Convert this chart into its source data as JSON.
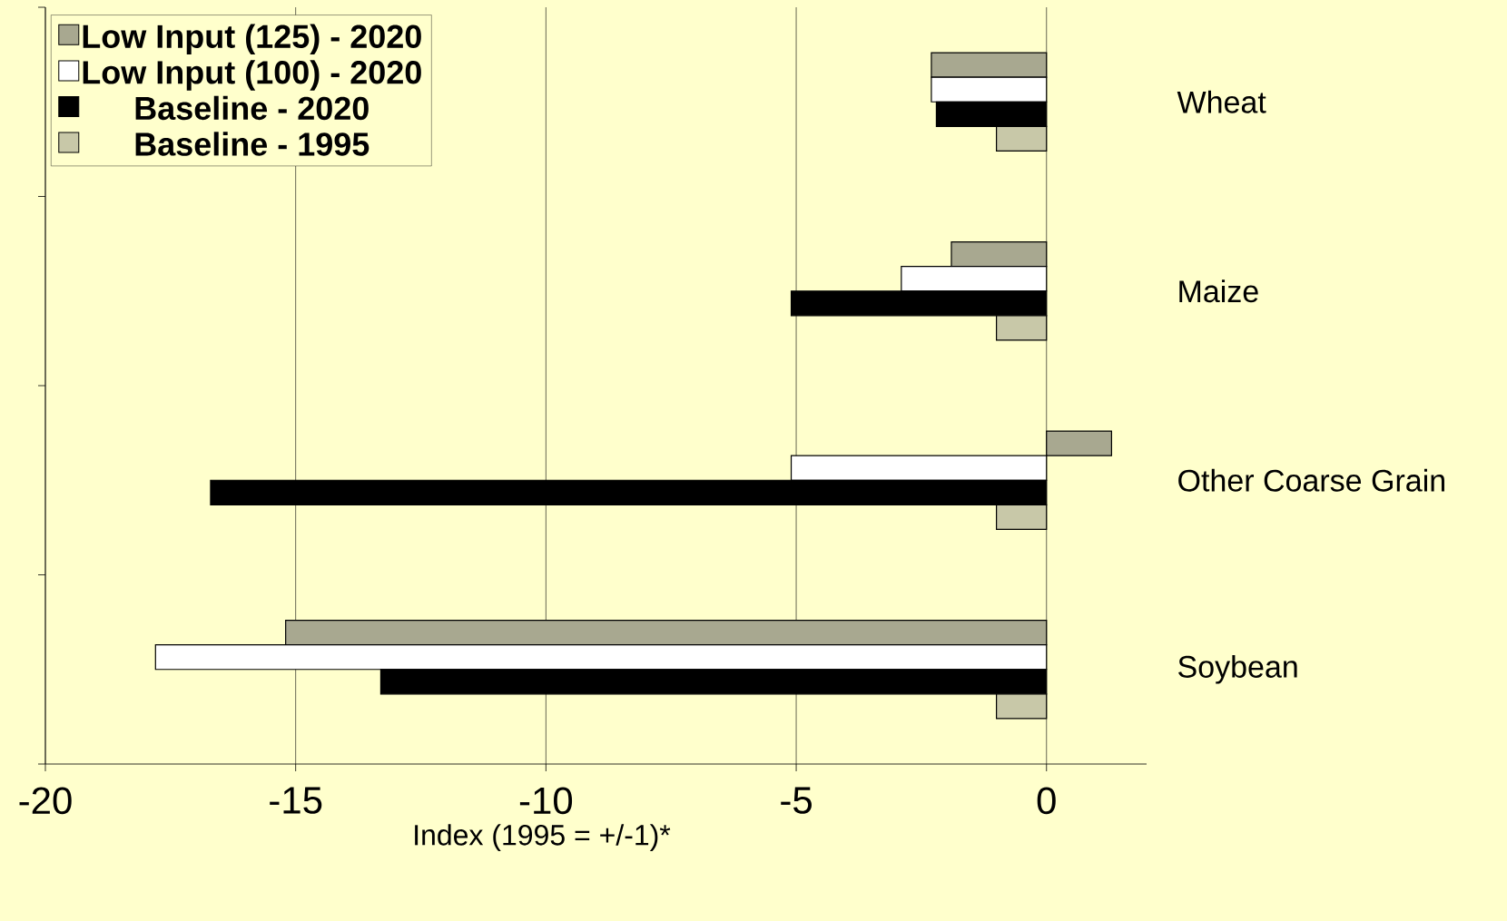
{
  "chart_data": {
    "type": "bar",
    "orientation": "horizontal",
    "categories": [
      "Wheat",
      "Maize",
      "Other Coarse Grain",
      "Soybean"
    ],
    "series": [
      {
        "name": "Low Input (125) - 2020",
        "color": "#a8a890",
        "values": [
          -2.3,
          -1.9,
          1.3,
          -15.2
        ]
      },
      {
        "name": "Low Input (100) - 2020",
        "color": "#ffffff",
        "values": [
          -2.3,
          -2.9,
          -5.1,
          -17.8
        ]
      },
      {
        "name": "Baseline - 2020",
        "color": "#000000",
        "values": [
          -2.2,
          -5.1,
          -16.7,
          -13.3
        ]
      },
      {
        "name": "Baseline - 1995",
        "color": "#c8c8a8",
        "values": [
          -1,
          -1,
          -1,
          -1
        ]
      }
    ],
    "xlim": [
      -20,
      2
    ],
    "xticks": [
      -20,
      -15,
      -10,
      -5,
      0
    ],
    "xlabel": "Index (1995 = +/-1)*",
    "grid": "x",
    "legend": "top left"
  }
}
